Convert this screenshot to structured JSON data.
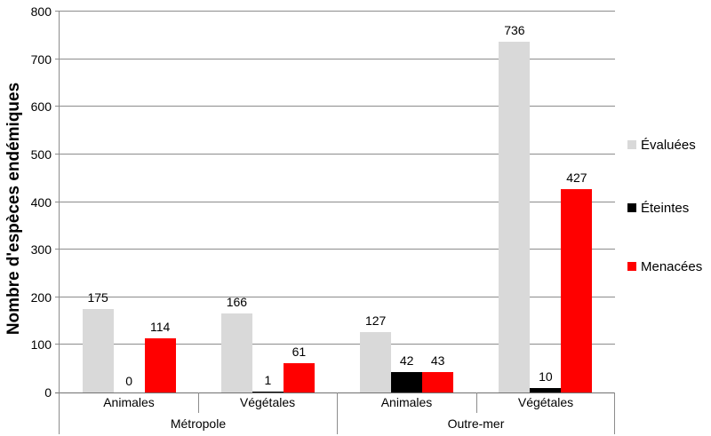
{
  "chart_data": {
    "type": "bar",
    "title": "",
    "ylabel": "Nombre d'espèces endémiques",
    "xlabel": "",
    "ylim": [
      0,
      800
    ],
    "ytick_step": 100,
    "grid": true,
    "legend_position": "right",
    "categories": [
      "Animales",
      "Végétales",
      "Animales",
      "Végétales"
    ],
    "groups": [
      {
        "label": "Métropole"
      },
      {
        "label": "Outre-mer"
      }
    ],
    "series": [
      {
        "name": "Évaluées",
        "color": "#d9d9d9",
        "values": [
          175,
          166,
          127,
          736
        ]
      },
      {
        "name": "Éteintes",
        "color": "#000000",
        "values": [
          0,
          1,
          42,
          10
        ]
      },
      {
        "name": "Menacées",
        "color": "#ff0000",
        "values": [
          114,
          61,
          43,
          427
        ]
      }
    ]
  },
  "colors": {
    "background": "#ffffff",
    "gridline": "#8c8c8c",
    "axis": "#707070",
    "text": "#000000"
  }
}
